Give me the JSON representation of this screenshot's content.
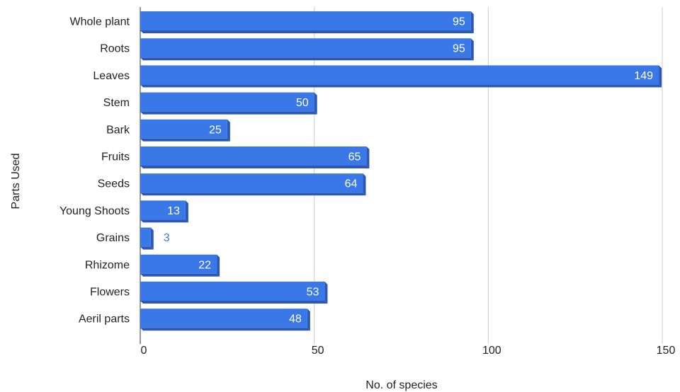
{
  "chart_data": {
    "type": "bar",
    "orientation": "horizontal",
    "categories": [
      "Whole plant",
      "Roots",
      "Leaves",
      "Stem",
      "Bark",
      "Fruits",
      "Seeds",
      "Young Shoots",
      "Grains",
      "Rhizome",
      "Flowers",
      "Aeril parts"
    ],
    "values": [
      95,
      95,
      149,
      50,
      25,
      65,
      64,
      13,
      3,
      22,
      53,
      48
    ],
    "xlabel": "No. of species",
    "ylabel": "Parts Used",
    "xlim": [
      0,
      150
    ],
    "xticks": [
      0,
      50,
      100,
      150
    ],
    "grid": "vertical",
    "legend": "none",
    "colors": {
      "bar": "#3b78e7",
      "bar_shadow": "#2a58b3",
      "grid": "#cccccc",
      "outside_label": "#3b78e7"
    }
  }
}
